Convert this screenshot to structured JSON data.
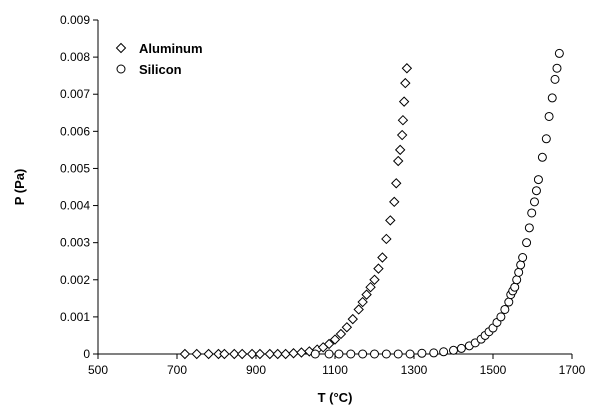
{
  "chart_data": {
    "type": "scatter",
    "xlabel": "T (°C)",
    "ylabel": "P (Pa)",
    "xlim": [
      500,
      1700
    ],
    "ylim": [
      0,
      0.009
    ],
    "xticks": [
      500,
      700,
      900,
      1100,
      1300,
      1500,
      1700
    ],
    "yticks": [
      0,
      0.001,
      0.002,
      0.003,
      0.004,
      0.005,
      0.006,
      0.007,
      0.008,
      0.009
    ],
    "ytick_labels": [
      "0",
      "0.001",
      "0.002",
      "0.003",
      "0.004",
      "0.005",
      "0.006",
      "0.007",
      "0.008",
      "0.009"
    ],
    "grid": false,
    "legend": "top-left",
    "series": [
      {
        "name": "Aluminum",
        "marker": "diamond",
        "points": [
          [
            720,
            0
          ],
          [
            750,
            0
          ],
          [
            780,
            0
          ],
          [
            805,
            0
          ],
          [
            820,
            0
          ],
          [
            845,
            0
          ],
          [
            865,
            0
          ],
          [
            890,
            0
          ],
          [
            910,
            0
          ],
          [
            935,
            0
          ],
          [
            955,
            0
          ],
          [
            975,
            0
          ],
          [
            995,
            2e-05
          ],
          [
            1015,
            4e-05
          ],
          [
            1035,
            7e-05
          ],
          [
            1055,
            0.00012
          ],
          [
            1070,
            0.00018
          ],
          [
            1085,
            0.00027
          ],
          [
            1100,
            0.00039
          ],
          [
            1115,
            0.00054
          ],
          [
            1130,
            0.00072
          ],
          [
            1145,
            0.00094
          ],
          [
            1160,
            0.0012
          ],
          [
            1170,
            0.0014
          ],
          [
            1180,
            0.0016
          ],
          [
            1190,
            0.0018
          ],
          [
            1200,
            0.002
          ],
          [
            1210,
            0.0023
          ],
          [
            1220,
            0.0026
          ],
          [
            1230,
            0.0031
          ],
          [
            1240,
            0.0036
          ],
          [
            1250,
            0.0041
          ],
          [
            1255,
            0.0046
          ],
          [
            1260,
            0.0052
          ],
          [
            1265,
            0.0055
          ],
          [
            1270,
            0.0059
          ],
          [
            1272,
            0.0063
          ],
          [
            1275,
            0.0068
          ],
          [
            1278,
            0.0073
          ],
          [
            1282,
            0.0077
          ]
        ]
      },
      {
        "name": "Silicon",
        "marker": "circle",
        "points": [
          [
            1050,
            0
          ],
          [
            1085,
            0
          ],
          [
            1110,
            0
          ],
          [
            1140,
            0
          ],
          [
            1170,
            0
          ],
          [
            1200,
            0
          ],
          [
            1230,
            0
          ],
          [
            1260,
            0
          ],
          [
            1290,
            0
          ],
          [
            1320,
            2e-05
          ],
          [
            1350,
            3e-05
          ],
          [
            1375,
            6e-05
          ],
          [
            1400,
            0.0001
          ],
          [
            1420,
            0.00015
          ],
          [
            1440,
            0.00022
          ],
          [
            1455,
            0.0003
          ],
          [
            1470,
            0.0004
          ],
          [
            1480,
            0.0005
          ],
          [
            1490,
            0.0006
          ],
          [
            1500,
            0.0007
          ],
          [
            1510,
            0.00085
          ],
          [
            1520,
            0.001
          ],
          [
            1530,
            0.0012
          ],
          [
            1540,
            0.0014
          ],
          [
            1545,
            0.0016
          ],
          [
            1550,
            0.0017
          ],
          [
            1555,
            0.0018
          ],
          [
            1560,
            0.002
          ],
          [
            1565,
            0.0022
          ],
          [
            1570,
            0.0024
          ],
          [
            1575,
            0.0026
          ],
          [
            1585,
            0.003
          ],
          [
            1592,
            0.0034
          ],
          [
            1598,
            0.0038
          ],
          [
            1605,
            0.0041
          ],
          [
            1610,
            0.0044
          ],
          [
            1615,
            0.0047
          ],
          [
            1625,
            0.0053
          ],
          [
            1635,
            0.0058
          ],
          [
            1642,
            0.0064
          ],
          [
            1650,
            0.0069
          ],
          [
            1657,
            0.0074
          ],
          [
            1662,
            0.0077
          ],
          [
            1668,
            0.0081
          ]
        ]
      }
    ]
  }
}
